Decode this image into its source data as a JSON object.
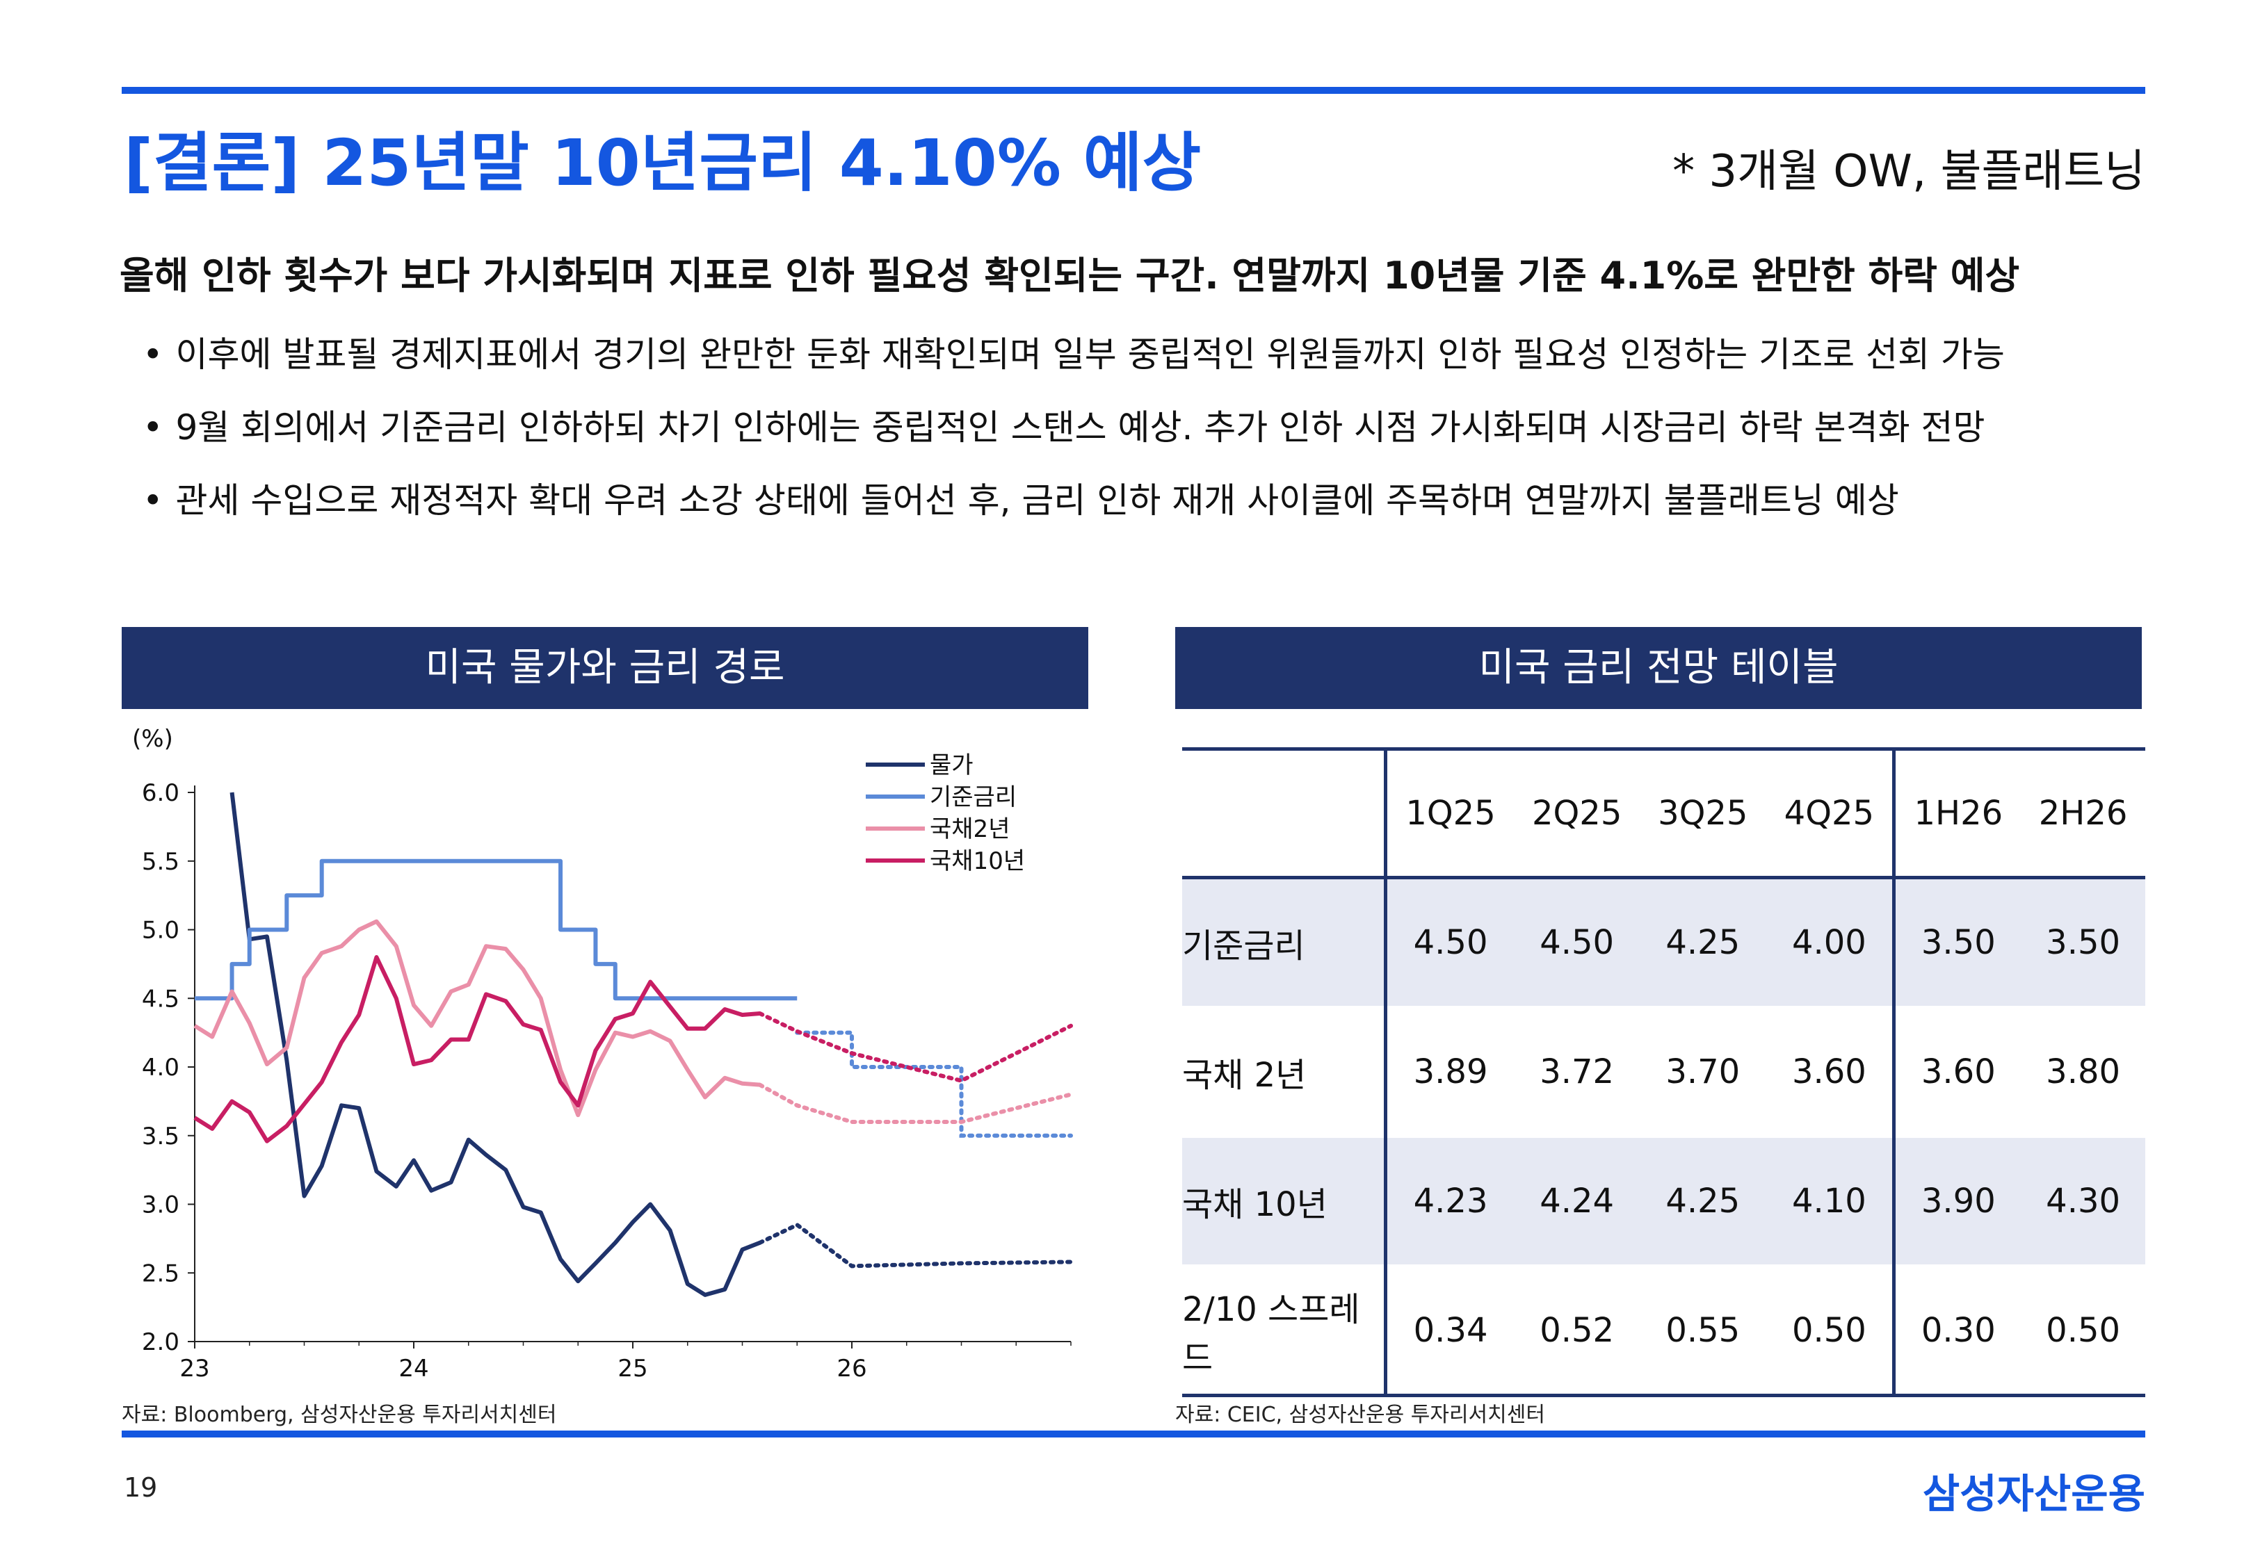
{
  "header": {
    "title": "[결론] 25년말 10년금리 4.10% 예상",
    "tag": "* 3개월 OW, 불플래트닝"
  },
  "summary": {
    "headline": "올해 인하 횟수가 보다 가시화되며 지표로 인하 필요성 확인되는 구간. 연말까지 10년물 기준 4.1%로 완만한 하락 예상",
    "bullet_symbol": "•",
    "bullets": [
      "이후에 발표될 경제지표에서 경기의 완만한 둔화 재확인되며 일부 중립적인 위원들까지 인하 필요성 인정하는 기조로 선회 가능",
      "9월 회의에서 기준금리 인하하되 차기 인하에는 중립적인 스탠스 예상. 추가 인하 시점 가시화되며 시장금리 하락 본격화 전망",
      "관세 수입으로 재정적자 확대 우려 소강 상태에 들어선 후, 금리 인하 재개 사이클에 주목하며 연말까지 불플래트닝 예상"
    ]
  },
  "left_panel": {
    "title": "미국 물가와 금리 경로",
    "source": "자료: Bloomberg, 삼성자산운용 투자리서치센터"
  },
  "right_panel": {
    "title": "미국 금리 전망 테이블",
    "source": "자료: CEIC, 삼성자산운용 투자리서치센터",
    "columns": [
      "1Q25",
      "2Q25",
      "3Q25",
      "4Q25",
      "1H26",
      "2H26"
    ],
    "rows": [
      {
        "label": "기준금리",
        "values": [
          "4.50",
          "4.50",
          "4.25",
          "4.00",
          "3.50",
          "3.50"
        ]
      },
      {
        "label": "국채 2년",
        "values": [
          "3.89",
          "3.72",
          "3.70",
          "3.60",
          "3.60",
          "3.80"
        ]
      },
      {
        "label": "국채 10년",
        "values": [
          "4.23",
          "4.24",
          "4.25",
          "4.10",
          "3.90",
          "4.30"
        ]
      },
      {
        "label": "2/10 스프레드",
        "values": [
          "0.34",
          "0.52",
          "0.55",
          "0.50",
          "0.30",
          "0.50"
        ]
      }
    ]
  },
  "footer": {
    "page_number": "19",
    "logo": "삼성자산운용"
  },
  "colors": {
    "accent": "#1457e0",
    "navy": "#1f336b",
    "cpi": "#1f336b",
    "policy": "#5b8ad8",
    "ust2y": "#ea8fa8",
    "ust10y": "#c81e63"
  },
  "chart_data": {
    "type": "line",
    "title": "미국 물가와 금리 경로",
    "ylabel": "(%)",
    "xlabel": "",
    "ylim": [
      2.0,
      6.0
    ],
    "yticks": [
      2.0,
      2.5,
      3.0,
      3.5,
      4.0,
      4.5,
      5.0,
      5.5,
      6.0
    ],
    "xlim": [
      23.0,
      27.0
    ],
    "xticks": [
      23,
      24,
      25,
      26
    ],
    "xtick_labels": [
      "23",
      "24",
      "25",
      "26"
    ],
    "grid": false,
    "legend_position": "top-right",
    "series": [
      {
        "name": "물가",
        "color": "#1f336b",
        "actual": {
          "x": [
            23.17,
            23.25,
            23.33,
            23.42,
            23.5,
            23.58,
            23.67,
            23.75,
            23.83,
            23.92,
            24.0,
            24.08,
            24.17,
            24.25,
            24.33,
            24.42,
            24.5,
            24.58,
            24.67,
            24.75,
            24.83,
            24.92,
            25.0,
            25.08,
            25.17,
            25.25,
            25.33,
            25.42,
            25.5,
            25.58
          ],
          "y": [
            6.0,
            4.93,
            4.95,
            4.05,
            3.06,
            3.28,
            3.72,
            3.7,
            3.24,
            3.13,
            3.32,
            3.1,
            3.16,
            3.47,
            3.36,
            3.25,
            2.98,
            2.94,
            2.6,
            2.44,
            2.57,
            2.72,
            2.87,
            3.0,
            2.81,
            2.42,
            2.34,
            2.38,
            2.67,
            2.72
          ]
        },
        "forecast": {
          "x": [
            25.58,
            25.75,
            26.0,
            26.5,
            27.0
          ],
          "y": [
            2.72,
            2.85,
            2.55,
            2.57,
            2.58
          ]
        }
      },
      {
        "name": "기준금리",
        "color": "#5b8ad8",
        "step": true,
        "actual": {
          "x": [
            23.0,
            23.08,
            23.17,
            23.25,
            23.33,
            23.42,
            23.5,
            23.58,
            23.67,
            24.67,
            24.75,
            24.83,
            24.92,
            25.0,
            25.75
          ],
          "y": [
            4.5,
            4.5,
            4.75,
            5.0,
            5.0,
            5.25,
            5.25,
            5.5,
            5.5,
            5.0,
            5.0,
            4.75,
            4.5,
            4.5,
            4.5
          ]
        },
        "forecast": {
          "x": [
            25.75,
            26.0,
            26.5,
            27.0
          ],
          "y": [
            4.25,
            4.0,
            3.5,
            3.5
          ]
        }
      },
      {
        "name": "국채2년",
        "color": "#ea8fa8",
        "actual": {
          "x": [
            23.0,
            23.08,
            23.17,
            23.25,
            23.33,
            23.42,
            23.5,
            23.58,
            23.67,
            23.75,
            23.83,
            23.92,
            24.0,
            24.08,
            24.17,
            24.25,
            24.33,
            24.42,
            24.5,
            24.58,
            24.67,
            24.75,
            24.83,
            24.92,
            25.0,
            25.08,
            25.17,
            25.25,
            25.33,
            25.42,
            25.5,
            25.58
          ],
          "y": [
            4.3,
            4.22,
            4.55,
            4.32,
            4.02,
            4.14,
            4.65,
            4.83,
            4.88,
            5.0,
            5.06,
            4.88,
            4.45,
            4.3,
            4.55,
            4.6,
            4.88,
            4.86,
            4.71,
            4.5,
            3.98,
            3.65,
            3.98,
            4.25,
            4.22,
            4.26,
            4.19,
            3.98,
            3.78,
            3.92,
            3.88,
            3.87
          ]
        },
        "forecast": {
          "x": [
            25.58,
            25.75,
            26.0,
            26.5,
            27.0
          ],
          "y": [
            3.87,
            3.72,
            3.6,
            3.6,
            3.8
          ]
        }
      },
      {
        "name": "국채10년",
        "color": "#c81e63",
        "actual": {
          "x": [
            23.0,
            23.08,
            23.17,
            23.25,
            23.33,
            23.42,
            23.5,
            23.58,
            23.67,
            23.75,
            23.83,
            23.92,
            24.0,
            24.08,
            24.17,
            24.25,
            24.33,
            24.42,
            24.5,
            24.58,
            24.67,
            24.75,
            24.83,
            24.92,
            25.0,
            25.08,
            25.17,
            25.25,
            25.33,
            25.42,
            25.5,
            25.58
          ],
          "y": [
            3.63,
            3.55,
            3.75,
            3.67,
            3.46,
            3.57,
            3.73,
            3.89,
            4.18,
            4.38,
            4.8,
            4.5,
            4.02,
            4.05,
            4.2,
            4.2,
            4.53,
            4.48,
            4.31,
            4.27,
            3.89,
            3.72,
            4.12,
            4.35,
            4.39,
            4.62,
            4.44,
            4.28,
            4.28,
            4.42,
            4.38,
            4.39
          ]
        },
        "forecast": {
          "x": [
            25.58,
            25.75,
            26.0,
            26.5,
            27.0
          ],
          "y": [
            4.39,
            4.26,
            4.1,
            3.9,
            4.3
          ]
        }
      }
    ]
  }
}
